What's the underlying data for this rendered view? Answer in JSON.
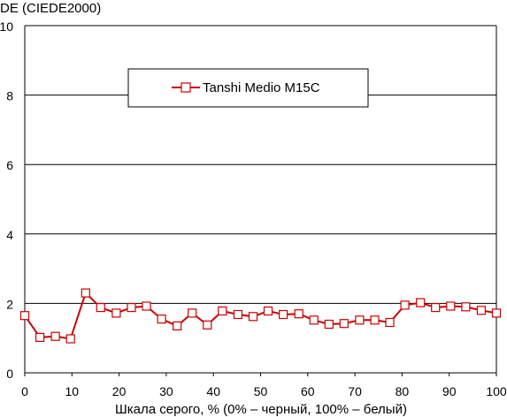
{
  "chart_data": {
    "type": "line",
    "title": "",
    "ylabel": "DE (CIEDE2000)",
    "xlabel": "Шкала серого, % (0% – черный, 100% – белый)",
    "xlim": [
      0,
      100
    ],
    "ylim": [
      0,
      10
    ],
    "x_ticks": [
      "0",
      "10",
      "20",
      "30",
      "40",
      "50",
      "60",
      "70",
      "80",
      "90",
      "100"
    ],
    "y_ticks": [
      "0",
      "2",
      "4",
      "6",
      "8",
      "10"
    ],
    "grid": "horizontal",
    "legend_position": "top-center",
    "series": [
      {
        "name": "Tanshi Medio M15C",
        "color": "#cc0000",
        "marker": "open-square",
        "x": [
          0,
          3.2,
          6.5,
          9.7,
          12.9,
          16.1,
          19.4,
          22.6,
          25.8,
          29.0,
          32.3,
          35.5,
          38.7,
          41.9,
          45.2,
          48.4,
          51.6,
          54.8,
          58.1,
          61.3,
          64.5,
          67.7,
          71.0,
          74.2,
          77.4,
          80.6,
          83.9,
          87.1,
          90.3,
          93.5,
          96.8,
          100
        ],
        "y": [
          1.65,
          1.02,
          1.05,
          0.98,
          2.3,
          1.88,
          1.72,
          1.88,
          1.92,
          1.55,
          1.35,
          1.72,
          1.38,
          1.78,
          1.68,
          1.62,
          1.78,
          1.68,
          1.7,
          1.52,
          1.4,
          1.42,
          1.52,
          1.52,
          1.45,
          1.95,
          2.02,
          1.88,
          1.92,
          1.9,
          1.8,
          1.72
        ]
      }
    ]
  }
}
